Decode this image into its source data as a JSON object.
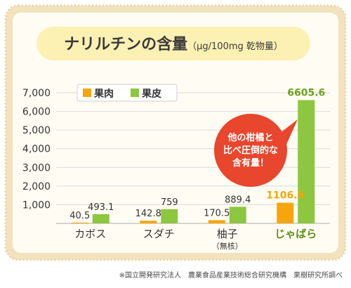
{
  "title_main": "ナリルチンの含量",
  "title_unit": "（μg/100mg 乾物量）",
  "legend": [
    {
      "label": "果肉",
      "color": "#f6a50d"
    },
    {
      "label": "果皮",
      "color": "#8dc63f"
    }
  ],
  "callout_lines": [
    "他の柑橘と",
    "比べ圧倒的な",
    "含有量！"
  ],
  "source_note": "※国立開発研究法人　農業食品産業技術総合研究機構　果樹研究所調べ",
  "colors": {
    "frame": "#f2e2bd",
    "plot_bg": "#fffdf3",
    "title_pill": "#fdf0b3",
    "callout": "#e8462d",
    "highlight_label": "#5f8f14",
    "highlight_value_flesh": "#f6a50d",
    "highlight_value_peel": "#6aa320"
  },
  "chart_data": {
    "type": "bar",
    "categories": [
      {
        "label": "カボス",
        "sub": ""
      },
      {
        "label": "スダチ",
        "sub": ""
      },
      {
        "label": "柚子",
        "sub": "（無核）"
      },
      {
        "label": "じゃばら",
        "sub": ""
      }
    ],
    "series": [
      {
        "name": "果肉",
        "values": [
          40.5,
          142.8,
          170.5,
          1106.9
        ],
        "value_labels": [
          "40.5",
          "142.8",
          "170.5",
          "1106.9"
        ]
      },
      {
        "name": "果皮",
        "values": [
          493.1,
          759,
          889.4,
          6605.6
        ],
        "value_labels": [
          "493.1",
          "759",
          "889.4",
          "6605.6"
        ]
      }
    ],
    "ylim": [
      0,
      7000
    ],
    "yticks": [
      1000,
      2000,
      3000,
      4000,
      5000,
      6000,
      7000
    ],
    "ytick_labels": [
      "1,000",
      "2,000",
      "3,000",
      "4,000",
      "5,000",
      "6,000",
      "7,000"
    ],
    "highlight_category": "じゃばら",
    "grid": true,
    "legend_position": "top-left"
  }
}
